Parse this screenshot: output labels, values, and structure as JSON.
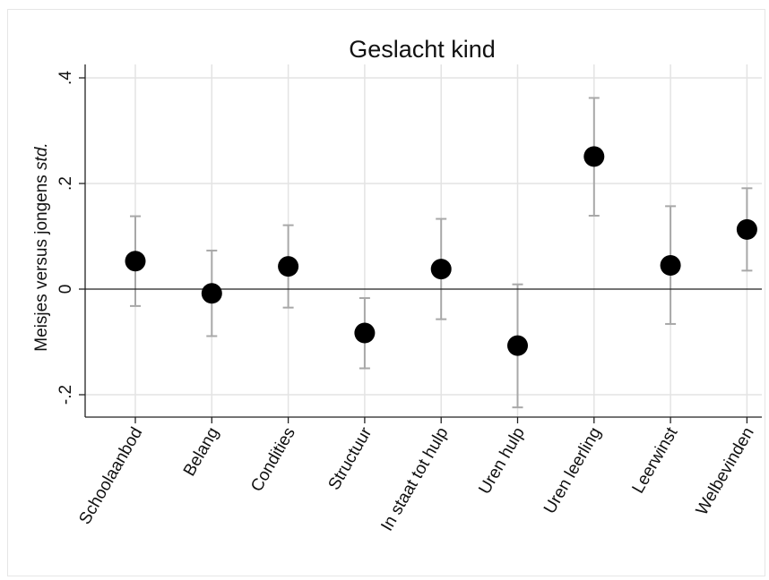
{
  "chart_data": {
    "type": "scatter",
    "title": "Geslacht kind",
    "ylabel_main": "Meisjes versus jongens",
    "ylabel_italic": "std.",
    "categories": [
      "Schoolaanbod",
      "Belang",
      "Condities",
      "Structuur",
      "In staat tot hulp",
      "Uren hulp",
      "Uren leerling",
      "Leerwinst",
      "Welbevinden"
    ],
    "values": [
      0.053,
      -0.008,
      0.043,
      -0.083,
      0.038,
      -0.107,
      0.251,
      0.045,
      0.113
    ],
    "ci_low": [
      -0.032,
      -0.089,
      -0.035,
      -0.15,
      -0.057,
      -0.224,
      0.139,
      -0.066,
      0.035
    ],
    "ci_high": [
      0.138,
      0.073,
      0.121,
      -0.017,
      0.133,
      0.009,
      0.362,
      0.157,
      0.191
    ],
    "yticks": [
      -0.2,
      0,
      0.2,
      0.4
    ],
    "ytick_labels": [
      "-.2",
      "0",
      ".2",
      ".4"
    ],
    "ylim": [
      -0.245,
      0.42
    ],
    "reference_line": 0,
    "grid": true,
    "colors": {
      "marker": "#000000",
      "ci": "#a8a8a8",
      "grid": "#e3e3e3",
      "axis": "#222222"
    }
  }
}
